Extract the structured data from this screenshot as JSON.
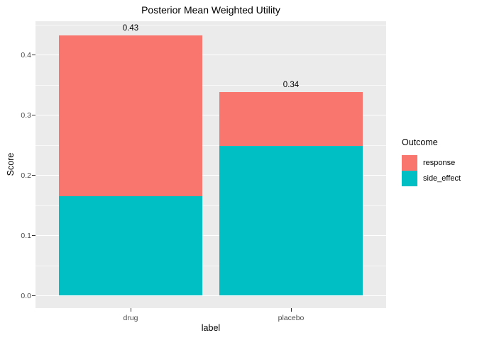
{
  "chart_data": {
    "type": "bar",
    "stacked": true,
    "title": "Posterior Mean Weighted Utility",
    "xlabel": "label",
    "ylabel": "Score",
    "categories": [
      "drug",
      "placebo"
    ],
    "series": [
      {
        "name": "response",
        "color": "#F8766D",
        "values": [
          0.267,
          0.09
        ]
      },
      {
        "name": "side_effect",
        "color": "#00BFC4",
        "values": [
          0.165,
          0.248
        ]
      }
    ],
    "stack_order_bottom_to_top": [
      "side_effect",
      "response"
    ],
    "bar_total_labels": [
      "0.43",
      "0.34"
    ],
    "yticks": [
      0.0,
      0.1,
      0.2,
      0.3,
      0.4
    ],
    "ytick_labels": [
      "0.0",
      "0.1",
      "0.2",
      "0.3",
      "0.4"
    ],
    "ylim": [
      0,
      0.4555
    ],
    "grid": true,
    "legend": {
      "title": "Outcome",
      "position": "right"
    },
    "colors": {
      "panel_bg": "#EBEBEB",
      "grid": "#FFFFFF",
      "tick_text": "#4D4D4D",
      "tick_mark": "#333333",
      "text": "#000000"
    }
  }
}
